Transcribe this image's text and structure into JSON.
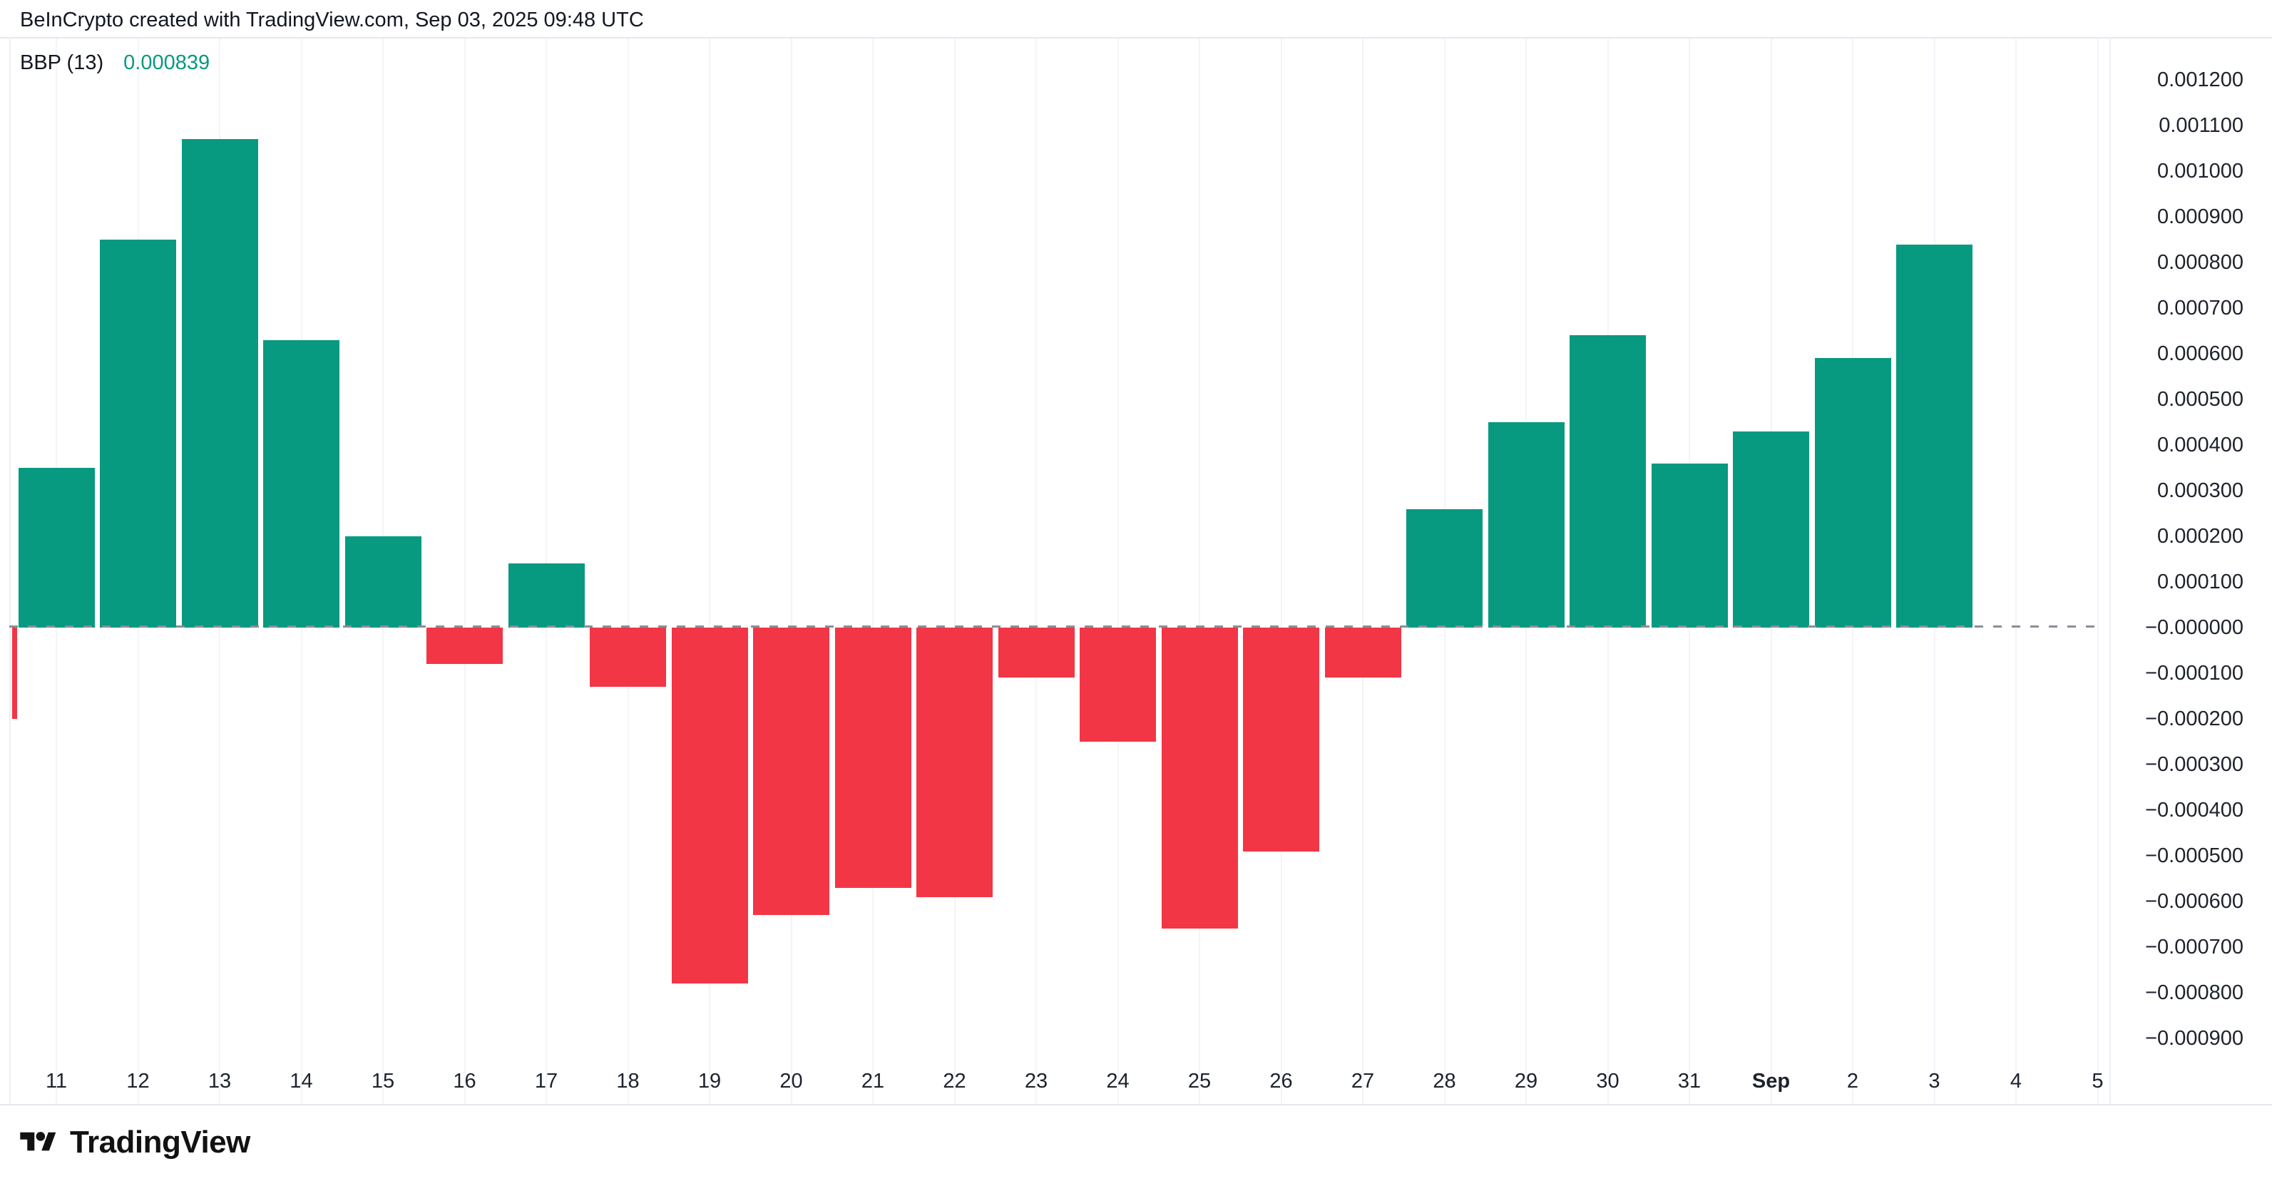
{
  "header": {
    "attribution": "BeInCrypto created with TradingView.com, Sep 03, 2025 09:48 UTC"
  },
  "indicator": {
    "name": "BBP (13)",
    "value": "0.000839"
  },
  "footer": {
    "brand": "TradingView"
  },
  "colors": {
    "positive": "#089981",
    "negative": "#F23645",
    "value_text": "#089981",
    "axis_text": "#1e222d",
    "header_text": "#131722",
    "grid": "#f2f4f9",
    "border": "#e6e8ef",
    "zero_line": "#8b8e99"
  },
  "chart_data": {
    "type": "bar",
    "title": "BBP (13) Bull Bear Power histogram",
    "legend_position": "top-left",
    "grid": "vertical-faint",
    "y_axis": {
      "min": -0.0009,
      "max": 0.0012,
      "step": 0.0001,
      "zero_line_dashed": true,
      "labels": [
        "0.001200",
        "0.001100",
        "0.001000",
        "0.000900",
        "0.000800",
        "0.000700",
        "0.000600",
        "0.000500",
        "0.000400",
        "0.000300",
        "0.000200",
        "0.000100",
        "−0.000000",
        "−0.000100",
        "−0.000200",
        "−0.000300",
        "−0.000400",
        "−0.000500",
        "−0.000600",
        "−0.000700",
        "−0.000800",
        "−0.000900"
      ]
    },
    "x_labels": [
      {
        "label": "11",
        "bold": false
      },
      {
        "label": "12",
        "bold": false
      },
      {
        "label": "13",
        "bold": false
      },
      {
        "label": "14",
        "bold": false
      },
      {
        "label": "15",
        "bold": false
      },
      {
        "label": "16",
        "bold": false
      },
      {
        "label": "17",
        "bold": false
      },
      {
        "label": "18",
        "bold": false
      },
      {
        "label": "19",
        "bold": false
      },
      {
        "label": "20",
        "bold": false
      },
      {
        "label": "21",
        "bold": false
      },
      {
        "label": "22",
        "bold": false
      },
      {
        "label": "23",
        "bold": false
      },
      {
        "label": "24",
        "bold": false
      },
      {
        "label": "25",
        "bold": false
      },
      {
        "label": "26",
        "bold": false
      },
      {
        "label": "27",
        "bold": false
      },
      {
        "label": "28",
        "bold": false
      },
      {
        "label": "29",
        "bold": false
      },
      {
        "label": "30",
        "bold": false
      },
      {
        "label": "31",
        "bold": false
      },
      {
        "label": "Sep",
        "bold": true
      },
      {
        "label": "2",
        "bold": false
      },
      {
        "label": "3",
        "bold": false
      },
      {
        "label": "4",
        "bold": false
      },
      {
        "label": "5",
        "bold": false
      }
    ],
    "series": [
      {
        "label": "11",
        "value": 0.00035
      },
      {
        "label": "12",
        "value": 0.00085
      },
      {
        "label": "13",
        "value": 0.00107
      },
      {
        "label": "14",
        "value": 0.00063
      },
      {
        "label": "15",
        "value": 0.0002
      },
      {
        "label": "16",
        "value": -8e-05
      },
      {
        "label": "17",
        "value": 0.00014
      },
      {
        "label": "18",
        "value": -0.00013
      },
      {
        "label": "19",
        "value": -0.00078
      },
      {
        "label": "20",
        "value": -0.00063
      },
      {
        "label": "21",
        "value": -0.00057
      },
      {
        "label": "22",
        "value": -0.00059
      },
      {
        "label": "23",
        "value": -0.00011
      },
      {
        "label": "24",
        "value": -0.00025
      },
      {
        "label": "25",
        "value": -0.00066
      },
      {
        "label": "26",
        "value": -0.00049
      },
      {
        "label": "27",
        "value": -0.00011
      },
      {
        "label": "28",
        "value": 0.00026
      },
      {
        "label": "29",
        "value": 0.00045
      },
      {
        "label": "30",
        "value": 0.00064
      },
      {
        "label": "31",
        "value": 0.00036
      },
      {
        "label": "Sep",
        "value": 0.00043
      },
      {
        "label": "2",
        "value": 0.00059
      },
      {
        "label": "3",
        "value": 0.000839
      }
    ],
    "clipped_left_bar": {
      "value": -0.0002
    }
  }
}
